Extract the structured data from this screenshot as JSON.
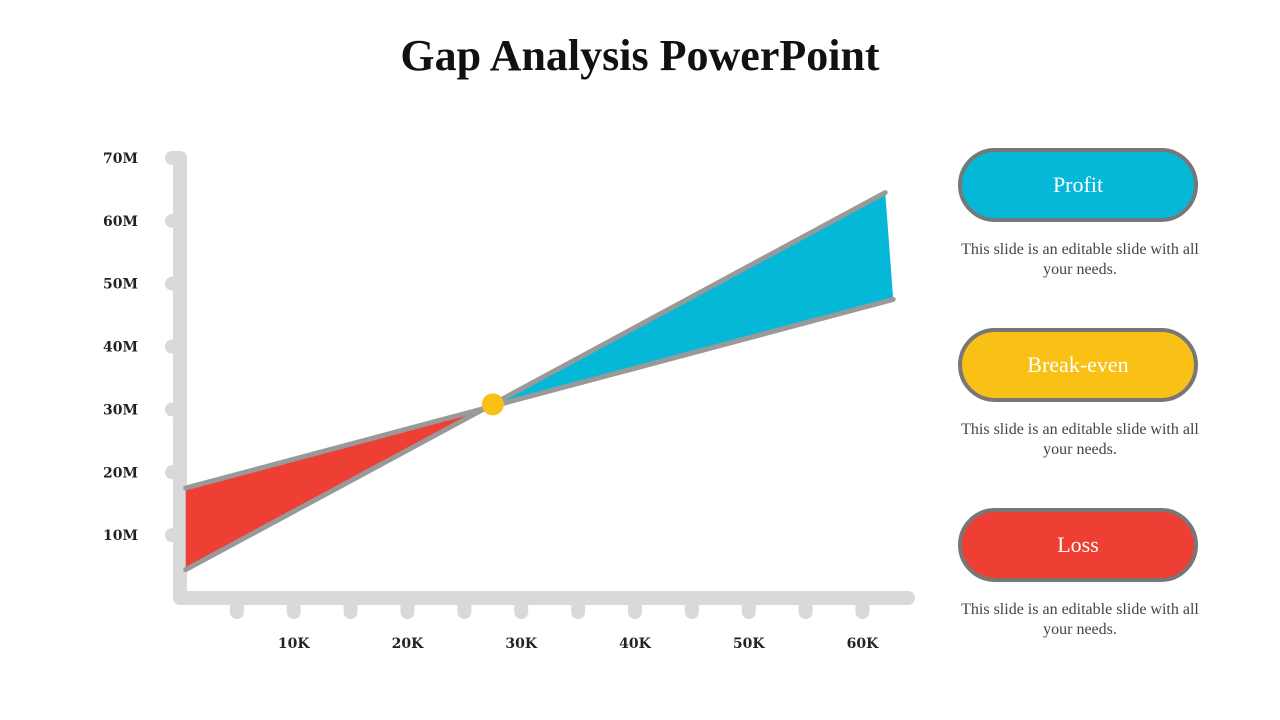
{
  "title": "Gap Analysis PowerPoint",
  "colors": {
    "profit": "#06B8D8",
    "breakeven": "#F9C016",
    "loss": "#EE3F34",
    "axis": "#D9D9D9",
    "line": "#999999",
    "pill_border": "#777777"
  },
  "chart_data": {
    "type": "area",
    "x": [
      0,
      62
    ],
    "x_unit": "K",
    "y_unit": "M",
    "xticks": [
      5,
      10,
      15,
      20,
      25,
      30,
      35,
      40,
      45,
      50,
      55,
      60
    ],
    "xtick_labels": [
      {
        "x": 10,
        "label": "10K"
      },
      {
        "x": 20,
        "label": "20K"
      },
      {
        "x": 30,
        "label": "30K"
      },
      {
        "x": 40,
        "label": "40K"
      },
      {
        "x": 50,
        "label": "50K"
      },
      {
        "x": 60,
        "label": "60K"
      }
    ],
    "yticks": [
      {
        "y": 10,
        "label": "10M"
      },
      {
        "y": 20,
        "label": "20M"
      },
      {
        "y": 30,
        "label": "30M"
      },
      {
        "y": 40,
        "label": "40M"
      },
      {
        "y": 50,
        "label": "50M"
      },
      {
        "y": 60,
        "label": "60M"
      },
      {
        "y": 70,
        "label": "70M"
      }
    ],
    "xlim": [
      0,
      64
    ],
    "ylim": [
      0,
      70
    ],
    "series": [
      {
        "values": [
          [
            0.5,
            4.5
          ],
          [
            62,
            64.5
          ]
        ]
      },
      {
        "values": [
          [
            0.5,
            17.5
          ],
          [
            62.7,
            47.5
          ]
        ]
      }
    ],
    "break_even": {
      "x": 27.5,
      "y": 30.8
    }
  },
  "legend": [
    {
      "label": "Profit",
      "desc": "This slide is an editable slide with all your needs.",
      "color": "#06B8D8"
    },
    {
      "label": "Break-even",
      "desc": "This slide is an editable slide with all your needs.",
      "color": "#F9C016"
    },
    {
      "label": "Loss",
      "desc": "This slide is an editable slide with all your needs.",
      "color": "#EE3F34"
    }
  ]
}
